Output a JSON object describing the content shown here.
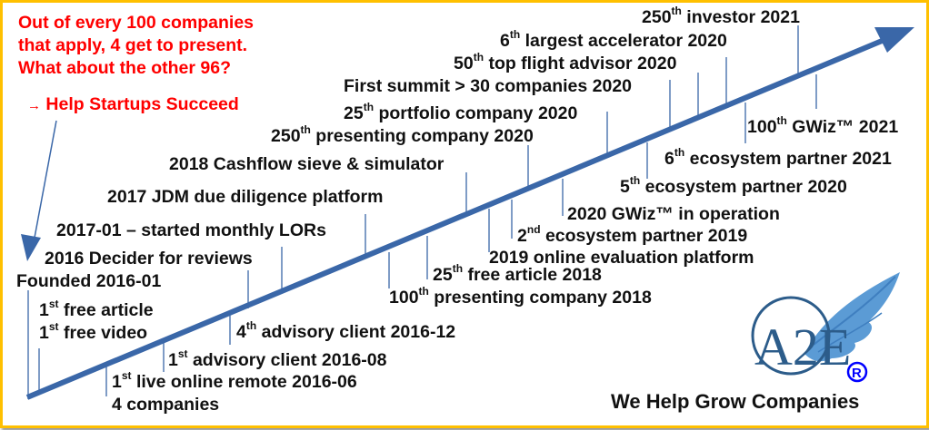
{
  "intro": {
    "lines": [
      "Out of every 100 companies",
      "that apply, 4 get to present.",
      "What about the other 96?"
    ],
    "arrow_glyph": "→",
    "call_to_action": "Help Startups Succeed"
  },
  "colors": {
    "accent_red": "#FF0000",
    "timeline_blue": "#3A67A8",
    "border_yellow": "#FFC000",
    "logo_blue": "#2C5C8A",
    "wing_blue": "#5B9BD5",
    "registered_blue": "#0000FF"
  },
  "milestones": [
    {
      "num": "250",
      "sup": "th",
      "text": " investor 2021"
    },
    {
      "num": "6",
      "sup": "th",
      "text": " largest accelerator 2020"
    },
    {
      "num": "50",
      "sup": "th",
      "text": " top flight advisor 2020"
    },
    {
      "num": "",
      "sup": "",
      "text": "First summit > 30 companies 2020"
    },
    {
      "num": "25",
      "sup": "th",
      "text": " portfolio company 2020"
    },
    {
      "num": "250",
      "sup": "th",
      "text": " presenting company 2020"
    },
    {
      "num": "",
      "sup": "",
      "text": "2018 Cashflow sieve & simulator"
    },
    {
      "num": "",
      "sup": "",
      "text": "2017 JDM due diligence platform"
    },
    {
      "num": "",
      "sup": "",
      "text": "2017-01 – started monthly LORs"
    },
    {
      "num": "",
      "sup": "",
      "text": "2016 Decider for reviews"
    },
    {
      "num": "",
      "sup": "",
      "text": "Founded 2016-01"
    },
    {
      "num": "1",
      "sup": "st",
      "text": " free article"
    },
    {
      "num": "1",
      "sup": "st",
      "text": " free video"
    },
    {
      "num": "4",
      "sup": "th",
      "text": " advisory client 2016-12"
    },
    {
      "num": "1",
      "sup": "st",
      "text": " advisory client 2016-08"
    },
    {
      "num": "1",
      "sup": "st",
      "text": " live online remote 2016-06"
    },
    {
      "num": "",
      "sup": "",
      "text": "4 companies"
    },
    {
      "num": "100",
      "sup": "th",
      "text": " presenting company 2018"
    },
    {
      "num": "25",
      "sup": "th",
      "text": " free article 2018"
    },
    {
      "num": "",
      "sup": "",
      "text": "2019 online evaluation platform"
    },
    {
      "num": "2",
      "sup": "nd",
      "text": "  ecosystem partner 2019"
    },
    {
      "num": "",
      "sup": "",
      "text": "2020 GWiz™ in operation"
    },
    {
      "num": "5",
      "sup": "th",
      "text": " ecosystem partner 2020"
    },
    {
      "num": "6",
      "sup": "th",
      "text": " ecosystem partner 2021"
    },
    {
      "num": "100",
      "sup": "th",
      "text": " GWiz™ 2021"
    }
  ],
  "logo": {
    "letters": "A2E",
    "registered": "®"
  },
  "slogan": "We Help Grow Companies"
}
